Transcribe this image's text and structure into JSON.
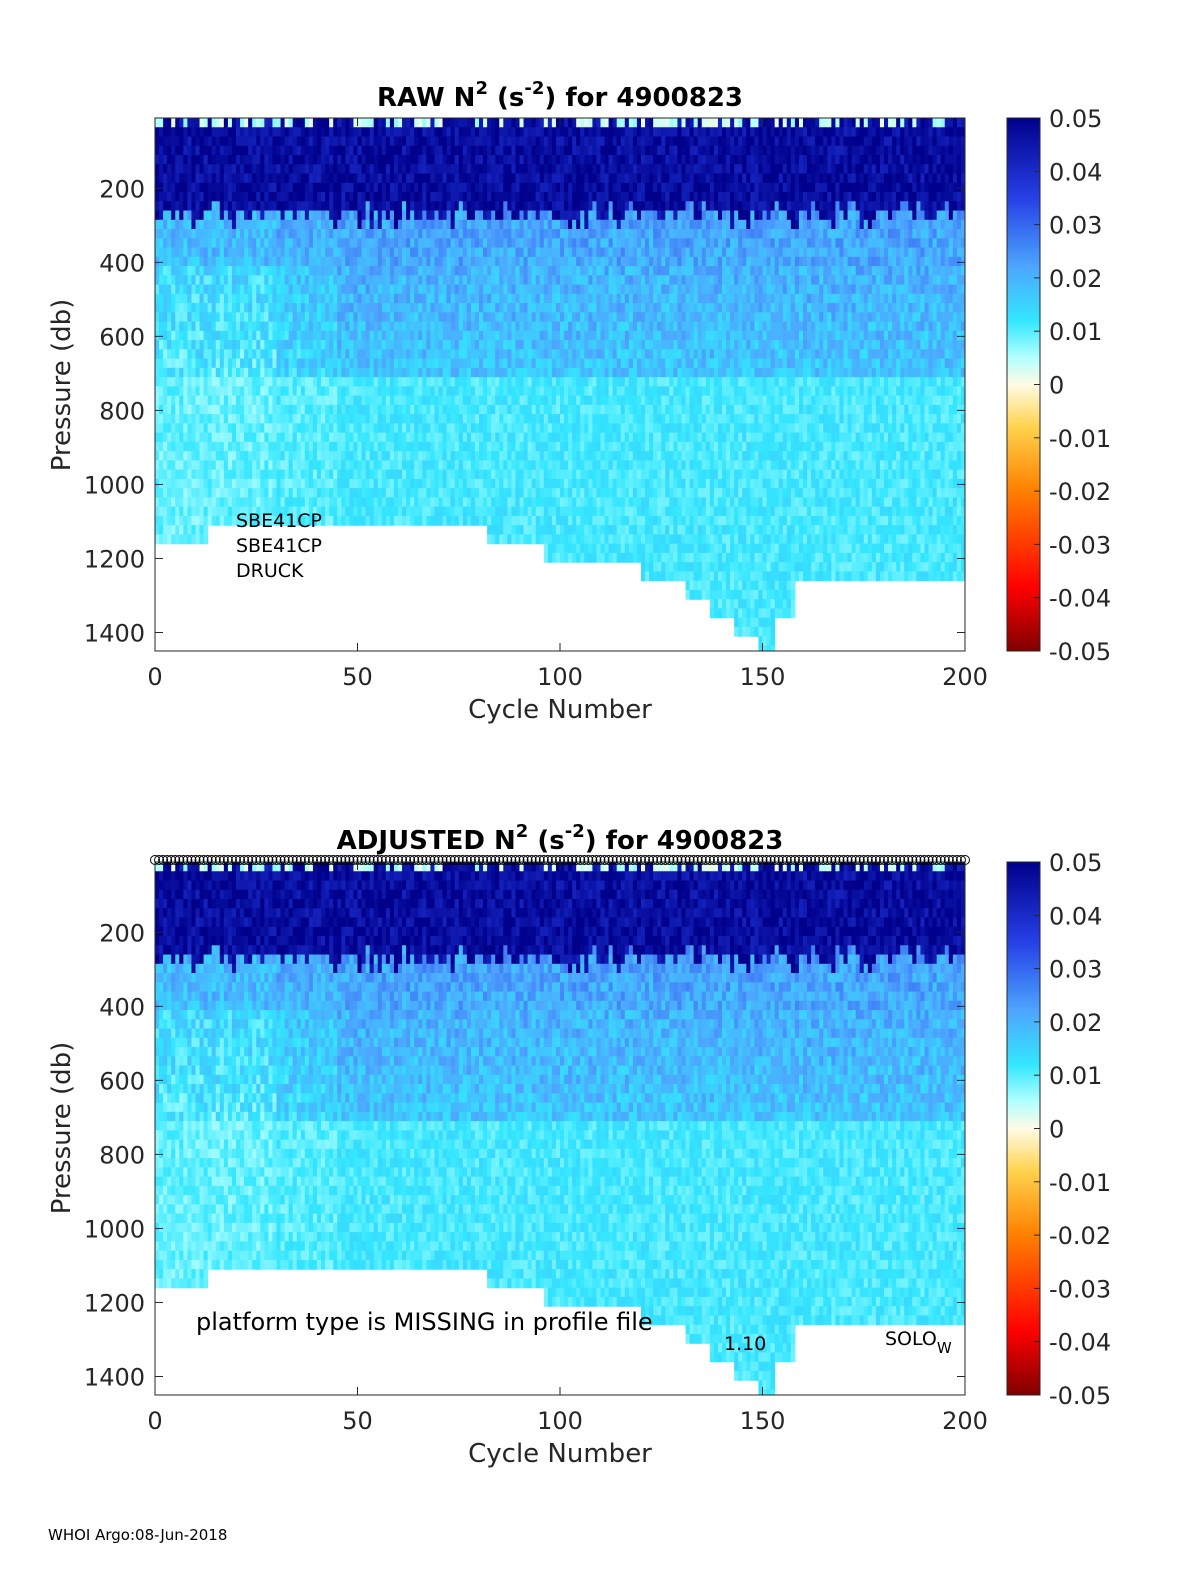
{
  "footer": "WHOI Argo:08-Jun-2018",
  "colors": {
    "colormap": [
      "#7f0000",
      "#ff0000",
      "#ff7f00",
      "#ffd700",
      "#ffffe6",
      "#e0ffff",
      "#66ffff",
      "#3399ff",
      "#0000ff",
      "#00008b"
    ]
  },
  "chart_data": [
    {
      "type": "heatmap",
      "title_main": "RAW N",
      "title_sup1": "2",
      "title_unit_open": " (s",
      "title_sup2": "-2",
      "title_rest": ") for 4900823",
      "xlabel": "Cycle Number",
      "ylabel": "Pressure (db)",
      "xlim": [
        0,
        200
      ],
      "ylim": [
        1450,
        10
      ],
      "xticks": [
        0,
        50,
        100,
        150,
        200
      ],
      "yticks": [
        200,
        400,
        600,
        800,
        1000,
        1200,
        1400
      ],
      "colorbar": {
        "clim": [
          -0.05,
          0.05
        ],
        "ticks": [
          "0.05",
          "0.04",
          "0.03",
          "0.02",
          "0.01",
          "0",
          "-0.01",
          "-0.02",
          "-0.03",
          "-0.04",
          "-0.05"
        ]
      },
      "annotations": [
        "SBE41CP",
        "SBE41CP",
        "DRUCK"
      ],
      "bottom_depth_profile": [
        {
          "x": [
            0,
            13
          ],
          "p": 1150
        },
        {
          "x": [
            13,
            82
          ],
          "p": 1100
        },
        {
          "x": [
            82,
            96
          ],
          "p": 1150
        },
        {
          "x": [
            96,
            110
          ],
          "p": 1200
        },
        {
          "x": [
            110,
            120
          ],
          "p": 1200
        },
        {
          "x": [
            120,
            131
          ],
          "p": 1250
        },
        {
          "x": [
            131,
            137
          ],
          "p": 1300
        },
        {
          "x": [
            137,
            143
          ],
          "p": 1350
        },
        {
          "x": [
            143,
            149
          ],
          "p": 1400
        },
        {
          "x": [
            149,
            153
          ],
          "p": 1450
        },
        {
          "x": [
            153,
            158
          ],
          "p": 1350
        },
        {
          "x": [
            158,
            162
          ],
          "p": 1250
        },
        {
          "x": [
            162,
            200
          ],
          "p": 1250
        }
      ],
      "mixed_layer_n2": 0.045,
      "thermocline_n2": 0.022,
      "deep_n2": 0.012
    },
    {
      "type": "heatmap",
      "title_main": "ADJUSTED N",
      "title_sup1": "2",
      "title_unit_open": " (s",
      "title_sup2": "-2",
      "title_rest": ") for 4900823",
      "xlabel": "Cycle Number",
      "ylabel": "Pressure (db)",
      "xlim": [
        0,
        200
      ],
      "ylim": [
        1450,
        10
      ],
      "xticks": [
        0,
        50,
        100,
        150,
        200
      ],
      "yticks": [
        200,
        400,
        600,
        800,
        1000,
        1200,
        1400
      ],
      "colorbar": {
        "clim": [
          -0.05,
          0.05
        ],
        "ticks": [
          "0.05",
          "0.04",
          "0.03",
          "0.02",
          "0.01",
          "0",
          "-0.01",
          "-0.02",
          "-0.03",
          "-0.04",
          "-0.05"
        ]
      },
      "annotations": [
        "platform type is MISSING in profile file",
        "1.10",
        "SOLO",
        "W"
      ],
      "top_markers": true,
      "bottom_depth_profile": [
        {
          "x": [
            0,
            13
          ],
          "p": 1150
        },
        {
          "x": [
            13,
            82
          ],
          "p": 1100
        },
        {
          "x": [
            82,
            96
          ],
          "p": 1150
        },
        {
          "x": [
            96,
            110
          ],
          "p": 1200
        },
        {
          "x": [
            110,
            120
          ],
          "p": 1200
        },
        {
          "x": [
            120,
            131
          ],
          "p": 1250
        },
        {
          "x": [
            131,
            137
          ],
          "p": 1300
        },
        {
          "x": [
            137,
            143
          ],
          "p": 1350
        },
        {
          "x": [
            143,
            149
          ],
          "p": 1400
        },
        {
          "x": [
            149,
            153
          ],
          "p": 1450
        },
        {
          "x": [
            153,
            158
          ],
          "p": 1350
        },
        {
          "x": [
            158,
            162
          ],
          "p": 1250
        },
        {
          "x": [
            162,
            200
          ],
          "p": 1250
        }
      ],
      "mixed_layer_n2": 0.045,
      "thermocline_n2": 0.022,
      "deep_n2": 0.012
    }
  ]
}
